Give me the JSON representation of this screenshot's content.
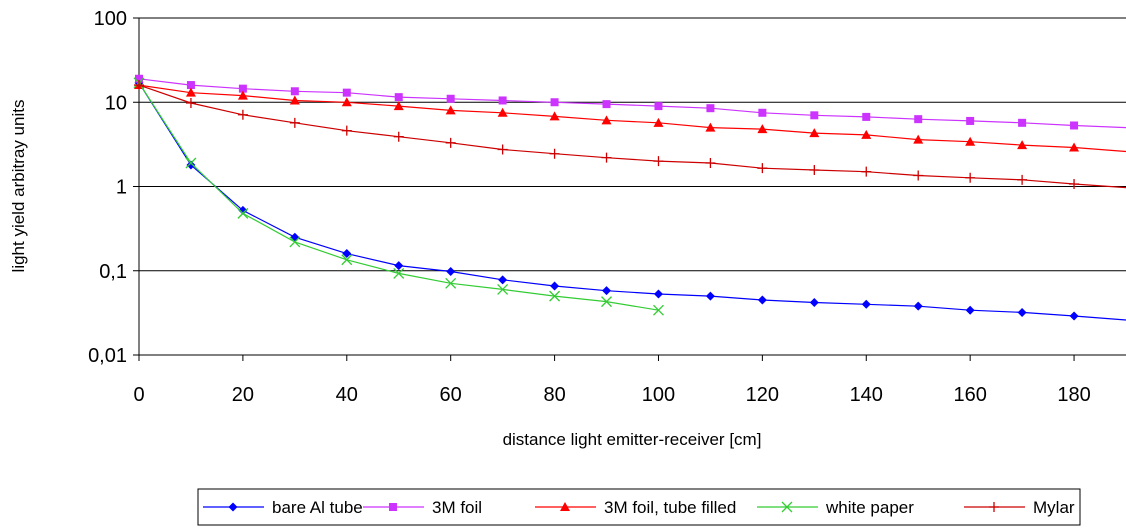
{
  "chart_data": {
    "type": "line",
    "title": "",
    "xlabel": "distance light emitter-receiver [cm]",
    "ylabel": "light yield arbitray units",
    "xlim": [
      0,
      190
    ],
    "ylim": [
      0.01,
      100
    ],
    "y_scale": "log",
    "x_ticks": [
      "0",
      "20",
      "40",
      "60",
      "80",
      "100",
      "120",
      "140",
      "160",
      "180"
    ],
    "x_tick_values": [
      0,
      20,
      40,
      60,
      80,
      100,
      120,
      140,
      160,
      180
    ],
    "y_ticks": [
      "100",
      "10",
      "1",
      "0,1",
      "0,01"
    ],
    "y_tick_values": [
      100,
      10,
      1,
      0.1,
      0.01
    ],
    "grid": "horizontal",
    "legend_position": "bottom",
    "series": [
      {
        "name": "bare Al tube",
        "color": "#0000ff",
        "marker": "diamond",
        "x": [
          0,
          10,
          20,
          30,
          40,
          50,
          60,
          70,
          80,
          90,
          100,
          110,
          120,
          130,
          140,
          150,
          160,
          170,
          180,
          190
        ],
        "values": [
          17,
          1.8,
          0.52,
          0.25,
          0.16,
          0.115,
          0.098,
          0.078,
          0.066,
          0.058,
          0.053,
          0.05,
          0.045,
          0.042,
          0.04,
          0.038,
          0.034,
          0.032,
          0.029,
          0.026
        ]
      },
      {
        "name": "3M foil",
        "color": "#cc33ff",
        "marker": "square",
        "x": [
          0,
          10,
          20,
          30,
          40,
          50,
          60,
          70,
          80,
          90,
          100,
          110,
          120,
          130,
          140,
          150,
          160,
          170,
          180,
          190
        ],
        "values": [
          19,
          16,
          14.5,
          13.5,
          13,
          11.5,
          11,
          10.5,
          10,
          9.5,
          9,
          8.5,
          7.5,
          7,
          6.7,
          6.3,
          6,
          5.7,
          5.3,
          5
        ]
      },
      {
        "name": "3M foil, tube filled",
        "color": "#ff0000",
        "marker": "triangle",
        "x": [
          0,
          10,
          20,
          30,
          40,
          50,
          60,
          70,
          80,
          90,
          100,
          110,
          120,
          130,
          140,
          150,
          160,
          170,
          180,
          190
        ],
        "values": [
          16,
          13,
          12,
          10.5,
          10,
          9,
          8,
          7.5,
          6.8,
          6.1,
          5.7,
          5,
          4.8,
          4.3,
          4.1,
          3.6,
          3.4,
          3.1,
          2.9,
          2.6
        ]
      },
      {
        "name": "white paper",
        "color": "#33cc33",
        "marker": "x",
        "x": [
          0,
          10,
          20,
          30,
          40,
          50,
          60,
          70,
          80,
          90,
          100
        ],
        "values": [
          17,
          1.9,
          0.48,
          0.22,
          0.135,
          0.093,
          0.071,
          0.06,
          0.05,
          0.043,
          0.034
        ]
      },
      {
        "name": "Mylar",
        "color": "#cc0000",
        "marker": "plus",
        "x": [
          0,
          10,
          20,
          30,
          40,
          50,
          60,
          70,
          80,
          90,
          100,
          110,
          120,
          130,
          140,
          150,
          160,
          170,
          180,
          190
        ],
        "values": [
          16,
          9.8,
          7.1,
          5.7,
          4.6,
          3.9,
          3.3,
          2.75,
          2.45,
          2.2,
          2.0,
          1.9,
          1.65,
          1.57,
          1.5,
          1.35,
          1.27,
          1.2,
          1.07,
          0.97
        ]
      }
    ]
  }
}
